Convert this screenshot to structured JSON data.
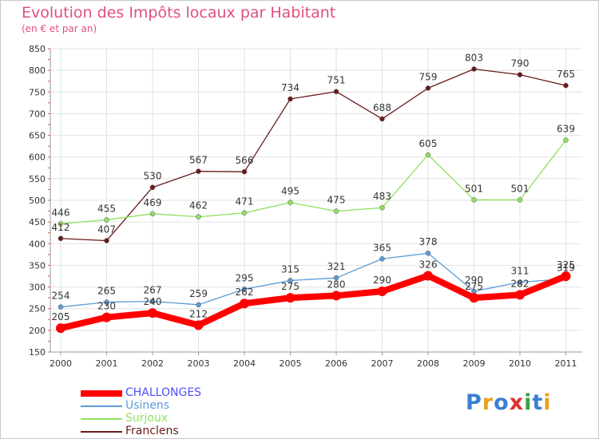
{
  "header": {
    "title": "Evolution des Impôts locaux par Habitant",
    "subtitle": "(en € et par an)"
  },
  "logo": {
    "text": "Proxiti",
    "letters": [
      {
        "ch": "P",
        "color": "#3a7fd5"
      },
      {
        "ch": "r",
        "color": "#e8a020"
      },
      {
        "ch": "o",
        "color": "#3a7fd5"
      },
      {
        "ch": "x",
        "color": "#e03030"
      },
      {
        "ch": "i",
        "color": "#3aa040"
      },
      {
        "ch": "t",
        "color": "#3a7fd5"
      },
      {
        "ch": "i",
        "color": "#e8a020"
      }
    ]
  },
  "chart_data": {
    "type": "line",
    "title": "Evolution des Impôts locaux par Habitant",
    "subtitle": "(en € et par an)",
    "x": [
      "2000",
      "2001",
      "2002",
      "2003",
      "2004",
      "2005",
      "2006",
      "2007",
      "2008",
      "2009",
      "2010",
      "2011"
    ],
    "ylim": [
      150,
      850
    ],
    "yticks": [
      150,
      200,
      250,
      300,
      350,
      400,
      450,
      500,
      550,
      600,
      650,
      700,
      750,
      800,
      850
    ],
    "grid": true,
    "legend": "bottom-left",
    "series": [
      {
        "name": "CHALLONGES",
        "color": "#ff0000",
        "label_color": "#5050ff",
        "values": [
          205,
          230,
          240,
          212,
          262,
          275,
          280,
          290,
          326,
          275,
          282,
          325
        ]
      },
      {
        "name": "Usinens",
        "color": "#5b9bd5",
        "label_color": "#5b9bd5",
        "values": [
          254,
          265,
          267,
          259,
          295,
          315,
          321,
          365,
          378,
          290,
          311,
          319
        ]
      },
      {
        "name": "Surjoux",
        "color": "#90e060",
        "label_color": "#90e060",
        "values": [
          446,
          455,
          469,
          462,
          471,
          495,
          475,
          483,
          605,
          501,
          501,
          639
        ]
      },
      {
        "name": "Franclens",
        "color": "#6b1a1a",
        "label_color": "#6b1a1a",
        "values": [
          412,
          407,
          530,
          567,
          566,
          734,
          751,
          688,
          759,
          803,
          790,
          765
        ]
      }
    ]
  }
}
